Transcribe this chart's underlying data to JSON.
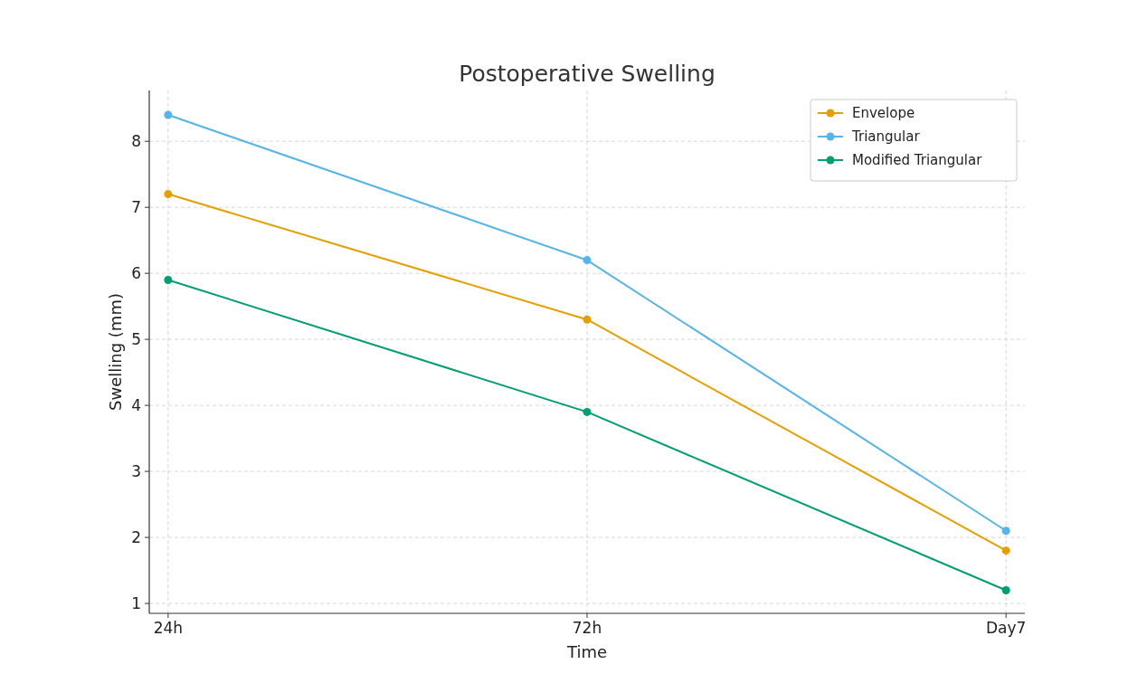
{
  "chart_data": {
    "type": "line",
    "title": "Postoperative Swelling",
    "xlabel": "Time",
    "ylabel": "Swelling (mm)",
    "categories": [
      "24h",
      "72h",
      "Day7"
    ],
    "series": [
      {
        "name": "Envelope",
        "color": "#e69f00",
        "values": [
          7.2,
          5.3,
          1.8
        ]
      },
      {
        "name": "Triangular",
        "color": "#56b4e9",
        "values": [
          8.4,
          6.2,
          2.1
        ]
      },
      {
        "name": "Modified Triangular",
        "color": "#009e73",
        "values": [
          5.9,
          3.9,
          1.2
        ]
      }
    ],
    "ylim": [
      0.85,
      8.77
    ],
    "yticks": [
      1,
      2,
      3,
      4,
      5,
      6,
      7,
      8
    ],
    "grid": true,
    "legend": "top right",
    "marker": "circle",
    "line_style": "solid"
  }
}
